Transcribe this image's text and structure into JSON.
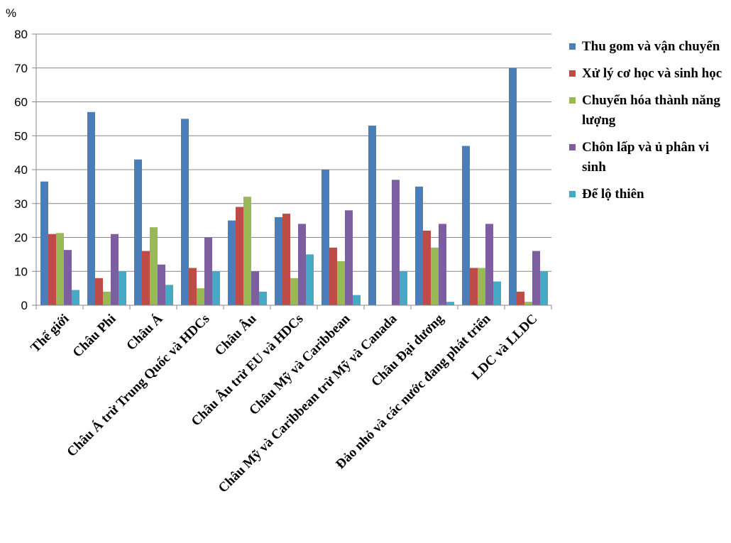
{
  "chart_data": {
    "type": "bar",
    "ylabel": "%",
    "ylim": [
      0,
      80
    ],
    "yticks": [
      0,
      10,
      20,
      30,
      40,
      50,
      60,
      70,
      80
    ],
    "grid": true,
    "legend_position": "right",
    "categories": [
      "Thế giới",
      "Châu Phi",
      "Châu Á",
      "Châu Á trừ Trung Quốc và HDCs",
      "Châu Âu",
      "Châu Âu trừ EU và HDCs",
      "Châu Mỹ và Caribbean",
      "Châu Mỹ và Caribbean trừ Mỹ và Canada",
      "Châu Đại dương",
      "Đảo nhỏ và các nước đang phát triển",
      "LDC và LLDC"
    ],
    "series": [
      {
        "name": "Thu gom và vận chuyển",
        "color": "#4a7ebb",
        "values": [
          36.5,
          57,
          43,
          55,
          25,
          26,
          40,
          53,
          35,
          47,
          70
        ]
      },
      {
        "name": "Xử lý cơ học và sinh học",
        "color": "#be4b48",
        "values": [
          21,
          8,
          16,
          11,
          29,
          27,
          17,
          0,
          22,
          11,
          4
        ]
      },
      {
        "name": "Chuyển hóa thành năng lượng",
        "color": "#98b954",
        "values": [
          21.3,
          4,
          23,
          5,
          32,
          8,
          13,
          0,
          17,
          11,
          1
        ]
      },
      {
        "name": "Chôn lấp và ủ phân vi sinh",
        "color": "#7d5fa0",
        "values": [
          16.3,
          21,
          12,
          20,
          10,
          24,
          28,
          37,
          24,
          24,
          16
        ]
      },
      {
        "name": "Để lộ thiên",
        "color": "#46aac5",
        "values": [
          4.5,
          10,
          6,
          10,
          4,
          15,
          3,
          10,
          1,
          7,
          10
        ]
      }
    ]
  }
}
